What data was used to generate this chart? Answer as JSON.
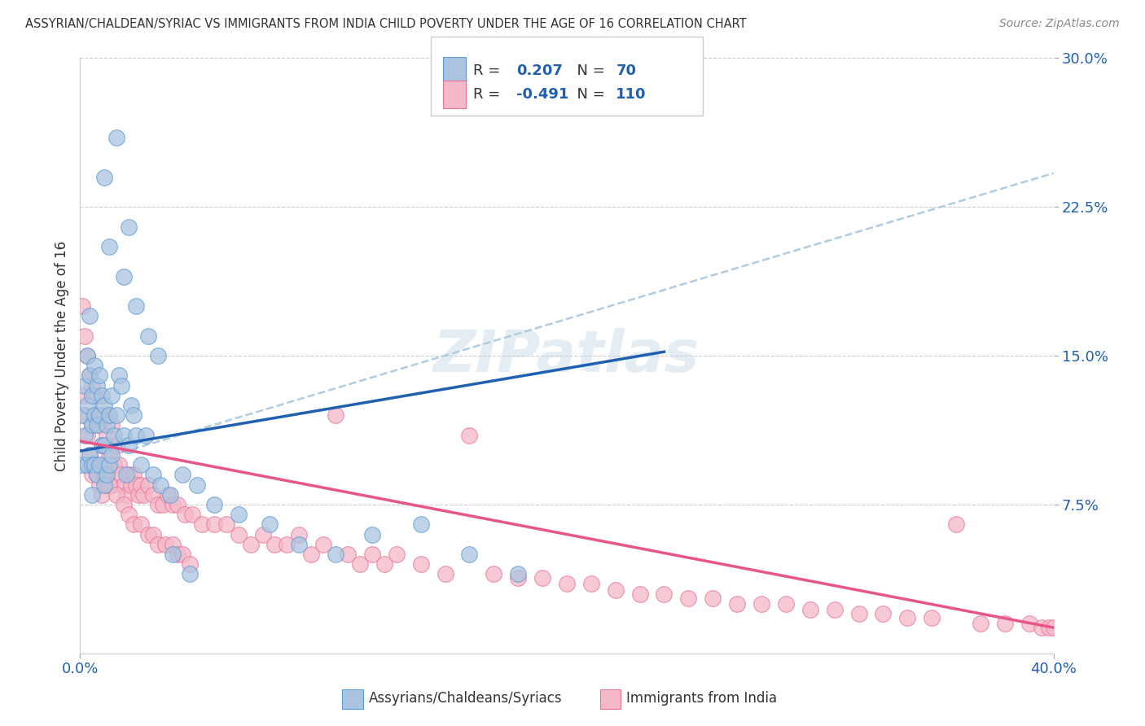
{
  "title": "ASSYRIAN/CHALDEAN/SYRIAC VS IMMIGRANTS FROM INDIA CHILD POVERTY UNDER THE AGE OF 16 CORRELATION CHART",
  "source": "Source: ZipAtlas.com",
  "ylabel": "Child Poverty Under the Age of 16",
  "xlim": [
    0,
    0.4
  ],
  "ylim": [
    0,
    0.3
  ],
  "yticks": [
    0.075,
    0.15,
    0.225,
    0.3
  ],
  "ytick_labels": [
    "7.5%",
    "15.0%",
    "22.5%",
    "30.0%"
  ],
  "xtick_left": "0.0%",
  "xtick_right": "40.0%",
  "legend_r1_text": "R = ",
  "legend_r1_val": "0.207",
  "legend_n1_text": "N = ",
  "legend_n1_val": "70",
  "legend_r2_text": "R = ",
  "legend_r2_val": "-0.491",
  "legend_n2_text": "N = ",
  "legend_n2_val": "110",
  "legend_label1": "Assyrians/Chaldeans/Syriacs",
  "legend_label2": "Immigrants from India",
  "blue_face": "#aac4e0",
  "blue_edge": "#5b9bd5",
  "pink_face": "#f4b8c8",
  "pink_edge": "#e8749a",
  "blue_line": "#2060b0",
  "pink_line": "#e8558a",
  "dash_line": "#b0cce0",
  "title_color": "#333333",
  "source_color": "#888888",
  "tick_color": "#2060b0",
  "background": "#ffffff",
  "blue_trend_x": [
    0.0,
    0.24
  ],
  "blue_trend_y": [
    0.102,
    0.152
  ],
  "pink_trend_x": [
    0.0,
    0.4
  ],
  "pink_trend_y": [
    0.107,
    0.013
  ],
  "dash_trend_x": [
    0.0,
    0.4
  ],
  "dash_trend_y": [
    0.095,
    0.242
  ],
  "blue_x": [
    0.001,
    0.001,
    0.002,
    0.002,
    0.003,
    0.003,
    0.003,
    0.004,
    0.004,
    0.004,
    0.005,
    0.005,
    0.005,
    0.005,
    0.006,
    0.006,
    0.006,
    0.007,
    0.007,
    0.007,
    0.008,
    0.008,
    0.008,
    0.009,
    0.009,
    0.01,
    0.01,
    0.01,
    0.011,
    0.011,
    0.012,
    0.012,
    0.013,
    0.013,
    0.014,
    0.015,
    0.016,
    0.017,
    0.018,
    0.019,
    0.02,
    0.021,
    0.022,
    0.023,
    0.025,
    0.027,
    0.03,
    0.033,
    0.037,
    0.042,
    0.048,
    0.055,
    0.065,
    0.078,
    0.09,
    0.105,
    0.12,
    0.14,
    0.16,
    0.18,
    0.01,
    0.012,
    0.015,
    0.018,
    0.02,
    0.023,
    0.028,
    0.032,
    0.038,
    0.045
  ],
  "blue_y": [
    0.12,
    0.095,
    0.135,
    0.11,
    0.15,
    0.125,
    0.095,
    0.17,
    0.14,
    0.1,
    0.13,
    0.115,
    0.095,
    0.08,
    0.145,
    0.12,
    0.095,
    0.135,
    0.115,
    0.09,
    0.14,
    0.12,
    0.095,
    0.13,
    0.105,
    0.125,
    0.105,
    0.085,
    0.115,
    0.09,
    0.12,
    0.095,
    0.13,
    0.1,
    0.11,
    0.12,
    0.14,
    0.135,
    0.11,
    0.09,
    0.105,
    0.125,
    0.12,
    0.11,
    0.095,
    0.11,
    0.09,
    0.085,
    0.08,
    0.09,
    0.085,
    0.075,
    0.07,
    0.065,
    0.055,
    0.05,
    0.06,
    0.065,
    0.05,
    0.04,
    0.24,
    0.205,
    0.26,
    0.19,
    0.215,
    0.175,
    0.16,
    0.15,
    0.05,
    0.04
  ],
  "pink_x": [
    0.001,
    0.001,
    0.002,
    0.002,
    0.003,
    0.003,
    0.004,
    0.004,
    0.005,
    0.005,
    0.005,
    0.006,
    0.006,
    0.007,
    0.007,
    0.008,
    0.008,
    0.009,
    0.009,
    0.01,
    0.01,
    0.011,
    0.011,
    0.012,
    0.013,
    0.013,
    0.014,
    0.015,
    0.016,
    0.017,
    0.018,
    0.019,
    0.02,
    0.021,
    0.022,
    0.023,
    0.024,
    0.025,
    0.026,
    0.028,
    0.03,
    0.032,
    0.034,
    0.036,
    0.038,
    0.04,
    0.043,
    0.046,
    0.05,
    0.055,
    0.06,
    0.065,
    0.07,
    0.075,
    0.08,
    0.085,
    0.09,
    0.095,
    0.1,
    0.105,
    0.11,
    0.115,
    0.12,
    0.125,
    0.13,
    0.14,
    0.15,
    0.16,
    0.17,
    0.18,
    0.19,
    0.2,
    0.21,
    0.22,
    0.23,
    0.24,
    0.25,
    0.26,
    0.27,
    0.28,
    0.29,
    0.3,
    0.31,
    0.32,
    0.33,
    0.34,
    0.35,
    0.36,
    0.37,
    0.38,
    0.39,
    0.395,
    0.398,
    0.4,
    0.007,
    0.01,
    0.012,
    0.015,
    0.018,
    0.02,
    0.022,
    0.025,
    0.028,
    0.03,
    0.032,
    0.035,
    0.038,
    0.04,
    0.042,
    0.045
  ],
  "pink_y": [
    0.175,
    0.13,
    0.16,
    0.12,
    0.15,
    0.11,
    0.14,
    0.1,
    0.135,
    0.115,
    0.09,
    0.13,
    0.095,
    0.12,
    0.09,
    0.115,
    0.085,
    0.105,
    0.08,
    0.12,
    0.09,
    0.11,
    0.085,
    0.1,
    0.115,
    0.085,
    0.095,
    0.105,
    0.095,
    0.09,
    0.085,
    0.08,
    0.09,
    0.085,
    0.09,
    0.085,
    0.08,
    0.085,
    0.08,
    0.085,
    0.08,
    0.075,
    0.075,
    0.08,
    0.075,
    0.075,
    0.07,
    0.07,
    0.065,
    0.065,
    0.065,
    0.06,
    0.055,
    0.06,
    0.055,
    0.055,
    0.06,
    0.05,
    0.055,
    0.12,
    0.05,
    0.045,
    0.05,
    0.045,
    0.05,
    0.045,
    0.04,
    0.11,
    0.04,
    0.038,
    0.038,
    0.035,
    0.035,
    0.032,
    0.03,
    0.03,
    0.028,
    0.028,
    0.025,
    0.025,
    0.025,
    0.022,
    0.022,
    0.02,
    0.02,
    0.018,
    0.018,
    0.065,
    0.015,
    0.015,
    0.015,
    0.013,
    0.013,
    0.013,
    0.095,
    0.09,
    0.085,
    0.08,
    0.075,
    0.07,
    0.065,
    0.065,
    0.06,
    0.06,
    0.055,
    0.055,
    0.055,
    0.05,
    0.05,
    0.045
  ]
}
